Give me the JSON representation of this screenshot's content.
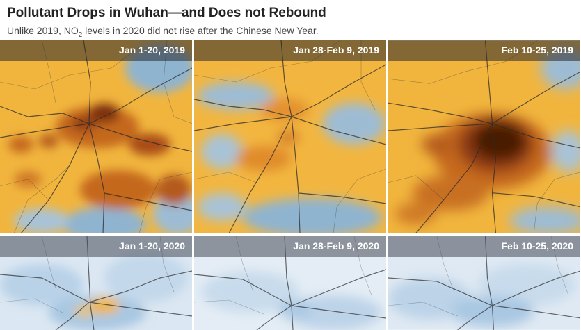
{
  "header": {
    "title": "Pollutant Drops in Wuhan—and Does not Rebound",
    "subtitle_pre": "Unlike 2019, NO",
    "subtitle_sub": "2",
    "subtitle_post": " levels in 2020 did not rise after the Chinese New Year."
  },
  "panels": [
    {
      "label": "Jan 1-20, 2019",
      "year": "2019"
    },
    {
      "label": "Jan 28-Feb 9, 2019",
      "year": "2019"
    },
    {
      "label": "Feb 10-25, 2019",
      "year": "2019"
    },
    {
      "label": "Jan 1-20, 2020",
      "year": "2020"
    },
    {
      "label": "Jan 28-Feb 9, 2020",
      "year": "2020"
    },
    {
      "label": "Feb 10-25, 2020",
      "year": "2020"
    }
  ],
  "colors": {
    "high_no2": "#7a2f0d",
    "mid_no2": "#e8922f",
    "low_no2": "#f1b53e",
    "clean_air": "#cfe0ef",
    "roads": "#2b2b2b"
  }
}
